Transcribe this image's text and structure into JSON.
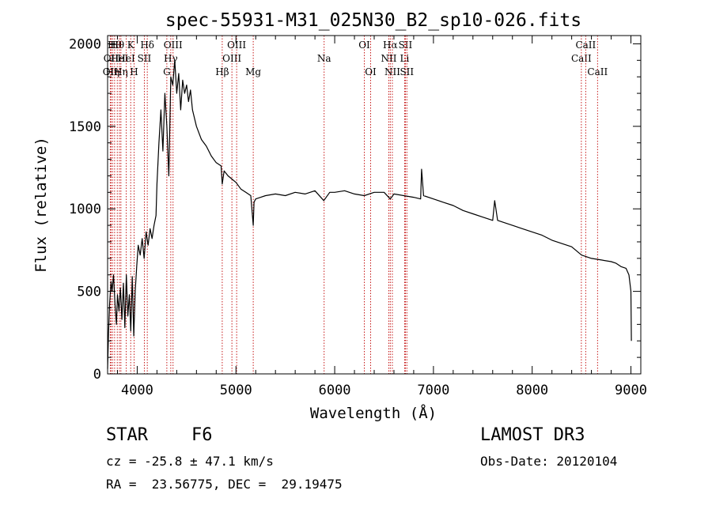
{
  "chart_data": {
    "type": "line",
    "title": "spec-55931-M31_025N30_B2_sp10-026.fits",
    "xlabel": "Wavelength (Å)",
    "ylabel": "Flux (relative)",
    "xlim": [
      3700,
      9100
    ],
    "ylim": [
      0,
      2050
    ],
    "x_ticks": [
      4000,
      5000,
      6000,
      7000,
      8000,
      9000
    ],
    "y_ticks": [
      0,
      500,
      1000,
      1500,
      2000
    ],
    "series": [
      {
        "name": "spectrum",
        "x": [
          3700,
          3710,
          3720,
          3735,
          3745,
          3760,
          3775,
          3790,
          3800,
          3815,
          3830,
          3845,
          3860,
          3875,
          3890,
          3905,
          3920,
          3935,
          3950,
          3965,
          3980,
          3995,
          4010,
          4030,
          4050,
          4070,
          4090,
          4110,
          4130,
          4150,
          4170,
          4190,
          4200,
          4220,
          4240,
          4260,
          4280,
          4300,
          4320,
          4340,
          4360,
          4380,
          4400,
          4420,
          4440,
          4460,
          4480,
          4500,
          4520,
          4540,
          4560,
          4600,
          4650,
          4700,
          4750,
          4800,
          4850,
          4861,
          4880,
          4920,
          4960,
          5000,
          5050,
          5100,
          5150,
          5175,
          5183,
          5200,
          5250,
          5300,
          5400,
          5500,
          5600,
          5700,
          5800,
          5890,
          5950,
          6000,
          6100,
          6200,
          6300,
          6400,
          6500,
          6563,
          6600,
          6700,
          6800,
          6870,
          6880,
          6900,
          7000,
          7100,
          7200,
          7300,
          7400,
          7500,
          7600,
          7620,
          7650,
          7700,
          7800,
          7900,
          8000,
          8100,
          8200,
          8300,
          8400,
          8500,
          8600,
          8700,
          8800,
          8850,
          8900,
          8950,
          8980,
          9000,
          9005
        ],
        "values": [
          30,
          250,
          420,
          560,
          500,
          600,
          420,
          300,
          480,
          380,
          520,
          330,
          550,
          280,
          600,
          350,
          480,
          260,
          590,
          230,
          500,
          650,
          780,
          720,
          820,
          700,
          860,
          780,
          880,
          820,
          900,
          960,
          1150,
          1400,
          1600,
          1350,
          1700,
          1500,
          1200,
          1800,
          1750,
          1900,
          1700,
          1820,
          1600,
          1780,
          1700,
          1750,
          1650,
          1720,
          1600,
          1500,
          1420,
          1380,
          1320,
          1280,
          1260,
          1150,
          1230,
          1200,
          1180,
          1160,
          1120,
          1100,
          1080,
          900,
          1040,
          1060,
          1070,
          1080,
          1090,
          1080,
          1100,
          1090,
          1110,
          1050,
          1100,
          1100,
          1110,
          1090,
          1080,
          1100,
          1100,
          1060,
          1090,
          1080,
          1070,
          1060,
          1240,
          1080,
          1060,
          1040,
          1020,
          990,
          970,
          950,
          930,
          1050,
          930,
          920,
          900,
          880,
          860,
          840,
          810,
          790,
          770,
          720,
          700,
          690,
          680,
          670,
          650,
          640,
          600,
          500,
          200
        ]
      }
    ],
    "line_markers": [
      {
        "wavelength": 3727,
        "label": "OII",
        "row": 2
      },
      {
        "wavelength": 3735,
        "label": "OII",
        "row": 1
      },
      {
        "wavelength": 3750,
        "label": "Hη",
        "row": 2
      },
      {
        "wavelength": 3771,
        "label": "Hθ",
        "row": 0
      },
      {
        "wavelength": 3798,
        "label": "Hθ",
        "row": 0
      },
      {
        "wavelength": 3820,
        "label": "HeI",
        "row": 1
      },
      {
        "wavelength": 3835,
        "label": "Hη",
        "row": 2
      },
      {
        "wavelength": 3889,
        "label": "HeI",
        "row": 1
      },
      {
        "wavelength": 3934,
        "label": "K",
        "row": 0
      },
      {
        "wavelength": 3968,
        "label": "H",
        "row": 2
      },
      {
        "wavelength": 4072,
        "label": "SII",
        "row": 1
      },
      {
        "wavelength": 4102,
        "label": "Hδ",
        "row": 0
      },
      {
        "wavelength": 4300,
        "label": "G",
        "row": 2
      },
      {
        "wavelength": 4340,
        "label": "Hγ",
        "row": 1
      },
      {
        "wavelength": 4363,
        "label": "OIII",
        "row": 0
      },
      {
        "wavelength": 4861,
        "label": "Hβ",
        "row": 2
      },
      {
        "wavelength": 4959,
        "label": "OIII",
        "row": 1
      },
      {
        "wavelength": 5007,
        "label": "OIII",
        "row": 0
      },
      {
        "wavelength": 5175,
        "label": "Mg",
        "row": 2
      },
      {
        "wavelength": 5893,
        "label": "Na",
        "row": 1
      },
      {
        "wavelength": 6300,
        "label": "OI",
        "row": 0
      },
      {
        "wavelength": 6364,
        "label": "OI",
        "row": 2
      },
      {
        "wavelength": 6548,
        "label": "NII",
        "row": 1
      },
      {
        "wavelength": 6563,
        "label": "Hα",
        "row": 0
      },
      {
        "wavelength": 6584,
        "label": "NII",
        "row": 2
      },
      {
        "wavelength": 6708,
        "label": "Li",
        "row": 1
      },
      {
        "wavelength": 6716,
        "label": "SII",
        "row": 0
      },
      {
        "wavelength": 6731,
        "label": "SII",
        "row": 2
      },
      {
        "wavelength": 8498,
        "label": "CaII",
        "row": 1
      },
      {
        "wavelength": 8542,
        "label": "CaII",
        "row": 0
      },
      {
        "wavelength": 8662,
        "label": "CaII",
        "row": 2
      }
    ]
  },
  "info": {
    "class": "STAR",
    "subclass": "F6",
    "survey": "LAMOST DR3",
    "cz": "cz = -25.8 ± 47.1 km/s",
    "obs_date": "Obs-Date: 20120104",
    "coords": "RA =  23.56775, DEC =  29.19475"
  }
}
